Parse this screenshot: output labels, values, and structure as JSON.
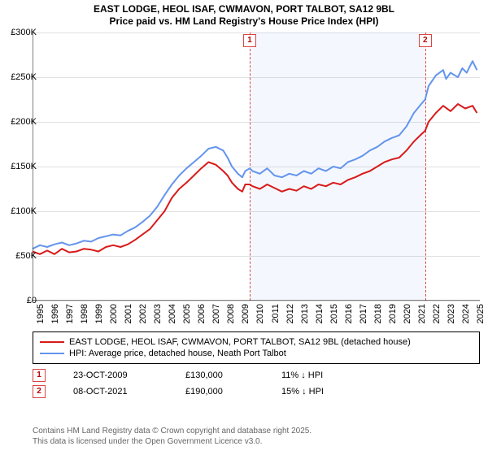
{
  "title_line1": "EAST LODGE, HEOL ISAF, CWMAVON, PORT TALBOT, SA12 9BL",
  "title_line2": "Price paid vs. HM Land Registry's House Price Index (HPI)",
  "chart": {
    "type": "line",
    "background_color": "#ffffff",
    "grid_color": "#e0e0e0",
    "shade_color": "rgba(100,149,237,0.07)",
    "x_domain": [
      1995,
      2025.5
    ],
    "y_domain": [
      0,
      300000
    ],
    "y_ticks": [
      0,
      50000,
      100000,
      150000,
      200000,
      250000,
      300000
    ],
    "y_tick_labels": [
      "£0",
      "£50K",
      "£100K",
      "£150K",
      "£200K",
      "£250K",
      "£300K"
    ],
    "x_ticks": [
      1995,
      1996,
      1997,
      1998,
      1999,
      2000,
      2001,
      2002,
      2003,
      2004,
      2005,
      2006,
      2007,
      2008,
      2009,
      2010,
      2011,
      2012,
      2013,
      2014,
      2015,
      2016,
      2017,
      2018,
      2019,
      2020,
      2021,
      2022,
      2023,
      2024,
      2025
    ],
    "x_tick_labels": [
      "1995",
      "1996",
      "1997",
      "1998",
      "1999",
      "2000",
      "2001",
      "2002",
      "2003",
      "2004",
      "2005",
      "2006",
      "2007",
      "2008",
      "2009",
      "2010",
      "2011",
      "2012",
      "2013",
      "2014",
      "2015",
      "2016",
      "2017",
      "2018",
      "2019",
      "2020",
      "2021",
      "2022",
      "2023",
      "2024",
      "2025"
    ],
    "label_fontsize": 11,
    "title_fontsize": 12,
    "vline_color": "#dd4444",
    "vline_dash": "4,3",
    "marker_border": "#dd4444",
    "marker_text_color": "#b00",
    "shade_ranges": [
      [
        2009.81,
        2021.77
      ]
    ],
    "vlines": [
      2009.81,
      2021.77
    ],
    "marker_labels": [
      "1",
      "2"
    ],
    "series": [
      {
        "name": "subject",
        "color": "#d91a1a",
        "width": 2,
        "points": [
          [
            1995.0,
            55000
          ],
          [
            1995.5,
            52000
          ],
          [
            1996.0,
            56000
          ],
          [
            1996.5,
            52000
          ],
          [
            1997.0,
            58000
          ],
          [
            1997.5,
            54000
          ],
          [
            1998.0,
            55000
          ],
          [
            1998.5,
            58000
          ],
          [
            1999.0,
            57000
          ],
          [
            1999.5,
            55000
          ],
          [
            2000.0,
            60000
          ],
          [
            2000.5,
            62000
          ],
          [
            2001.0,
            60000
          ],
          [
            2001.5,
            63000
          ],
          [
            2002.0,
            68000
          ],
          [
            2002.5,
            74000
          ],
          [
            2003.0,
            80000
          ],
          [
            2003.5,
            90000
          ],
          [
            2004.0,
            100000
          ],
          [
            2004.5,
            115000
          ],
          [
            2005.0,
            125000
          ],
          [
            2005.5,
            132000
          ],
          [
            2006.0,
            140000
          ],
          [
            2006.5,
            148000
          ],
          [
            2007.0,
            155000
          ],
          [
            2007.5,
            152000
          ],
          [
            2008.0,
            145000
          ],
          [
            2008.3,
            140000
          ],
          [
            2008.6,
            132000
          ],
          [
            2009.0,
            125000
          ],
          [
            2009.3,
            122000
          ],
          [
            2009.5,
            130000
          ],
          [
            2009.81,
            130000
          ],
          [
            2010.0,
            128000
          ],
          [
            2010.5,
            125000
          ],
          [
            2011.0,
            130000
          ],
          [
            2011.5,
            126000
          ],
          [
            2012.0,
            122000
          ],
          [
            2012.5,
            125000
          ],
          [
            2013.0,
            123000
          ],
          [
            2013.5,
            128000
          ],
          [
            2014.0,
            125000
          ],
          [
            2014.5,
            130000
          ],
          [
            2015.0,
            128000
          ],
          [
            2015.5,
            132000
          ],
          [
            2016.0,
            130000
          ],
          [
            2016.5,
            135000
          ],
          [
            2017.0,
            138000
          ],
          [
            2017.5,
            142000
          ],
          [
            2018.0,
            145000
          ],
          [
            2018.5,
            150000
          ],
          [
            2019.0,
            155000
          ],
          [
            2019.5,
            158000
          ],
          [
            2020.0,
            160000
          ],
          [
            2020.5,
            168000
          ],
          [
            2021.0,
            178000
          ],
          [
            2021.5,
            186000
          ],
          [
            2021.77,
            190000
          ],
          [
            2022.0,
            200000
          ],
          [
            2022.5,
            210000
          ],
          [
            2023.0,
            218000
          ],
          [
            2023.5,
            212000
          ],
          [
            2024.0,
            220000
          ],
          [
            2024.5,
            215000
          ],
          [
            2025.0,
            218000
          ],
          [
            2025.3,
            210000
          ]
        ]
      },
      {
        "name": "hpi",
        "color": "#6495ed",
        "width": 2,
        "points": [
          [
            1995.0,
            58000
          ],
          [
            1995.5,
            62000
          ],
          [
            1996.0,
            60000
          ],
          [
            1996.5,
            63000
          ],
          [
            1997.0,
            65000
          ],
          [
            1997.5,
            62000
          ],
          [
            1998.0,
            64000
          ],
          [
            1998.5,
            67000
          ],
          [
            1999.0,
            66000
          ],
          [
            1999.5,
            70000
          ],
          [
            2000.0,
            72000
          ],
          [
            2000.5,
            74000
          ],
          [
            2001.0,
            73000
          ],
          [
            2001.5,
            78000
          ],
          [
            2002.0,
            82000
          ],
          [
            2002.5,
            88000
          ],
          [
            2003.0,
            95000
          ],
          [
            2003.5,
            105000
          ],
          [
            2004.0,
            118000
          ],
          [
            2004.5,
            130000
          ],
          [
            2005.0,
            140000
          ],
          [
            2005.5,
            148000
          ],
          [
            2006.0,
            155000
          ],
          [
            2006.5,
            162000
          ],
          [
            2007.0,
            170000
          ],
          [
            2007.5,
            172000
          ],
          [
            2008.0,
            168000
          ],
          [
            2008.3,
            160000
          ],
          [
            2008.6,
            150000
          ],
          [
            2009.0,
            142000
          ],
          [
            2009.3,
            138000
          ],
          [
            2009.5,
            145000
          ],
          [
            2009.81,
            148000
          ],
          [
            2010.0,
            145000
          ],
          [
            2010.5,
            142000
          ],
          [
            2011.0,
            148000
          ],
          [
            2011.5,
            140000
          ],
          [
            2012.0,
            138000
          ],
          [
            2012.5,
            142000
          ],
          [
            2013.0,
            140000
          ],
          [
            2013.5,
            145000
          ],
          [
            2014.0,
            142000
          ],
          [
            2014.5,
            148000
          ],
          [
            2015.0,
            145000
          ],
          [
            2015.5,
            150000
          ],
          [
            2016.0,
            148000
          ],
          [
            2016.5,
            155000
          ],
          [
            2017.0,
            158000
          ],
          [
            2017.5,
            162000
          ],
          [
            2018.0,
            168000
          ],
          [
            2018.5,
            172000
          ],
          [
            2019.0,
            178000
          ],
          [
            2019.5,
            182000
          ],
          [
            2020.0,
            185000
          ],
          [
            2020.5,
            195000
          ],
          [
            2021.0,
            210000
          ],
          [
            2021.5,
            220000
          ],
          [
            2021.77,
            225000
          ],
          [
            2022.0,
            240000
          ],
          [
            2022.5,
            252000
          ],
          [
            2023.0,
            258000
          ],
          [
            2023.2,
            248000
          ],
          [
            2023.5,
            255000
          ],
          [
            2024.0,
            250000
          ],
          [
            2024.3,
            260000
          ],
          [
            2024.6,
            255000
          ],
          [
            2025.0,
            268000
          ],
          [
            2025.3,
            258000
          ]
        ]
      }
    ]
  },
  "legend": {
    "items": [
      {
        "color": "#d91a1a",
        "label": "EAST LODGE, HEOL ISAF, CWMAVON, PORT TALBOT, SA12 9BL (detached house)"
      },
      {
        "color": "#6495ed",
        "label": "HPI: Average price, detached house, Neath Port Talbot"
      }
    ]
  },
  "datapoints": [
    {
      "n": "1",
      "date": "23-OCT-2009",
      "price": "£130,000",
      "diff": "11% ↓ HPI"
    },
    {
      "n": "2",
      "date": "08-OCT-2021",
      "price": "£190,000",
      "diff": "15% ↓ HPI"
    }
  ],
  "footer_line1": "Contains HM Land Registry data © Crown copyright and database right 2025.",
  "footer_line2": "This data is licensed under the Open Government Licence v3.0."
}
